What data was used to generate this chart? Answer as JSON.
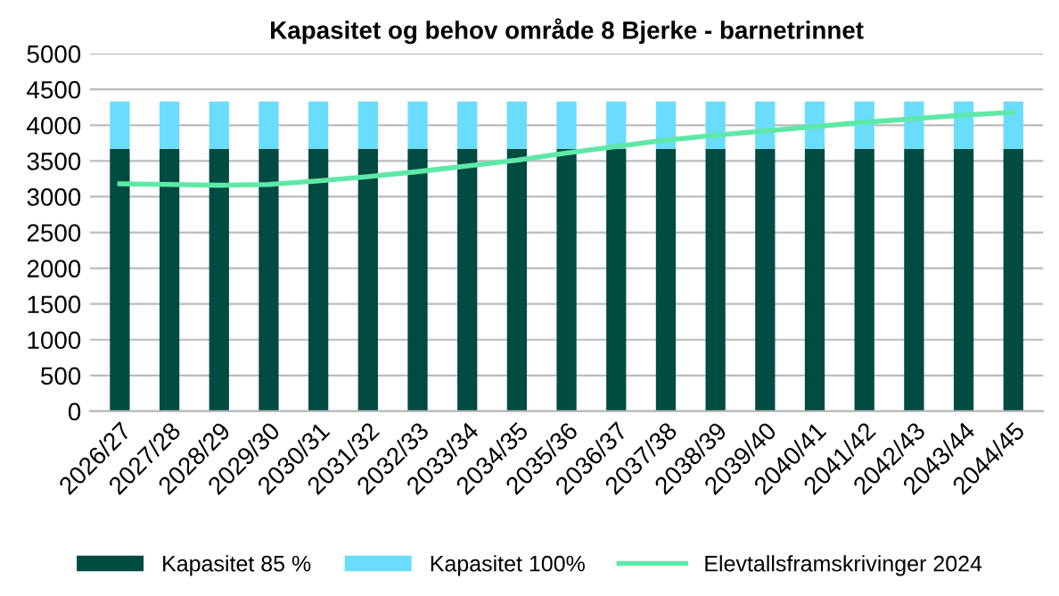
{
  "chart_data": {
    "type": "bar",
    "title": "Kapasitet og behov område 8 Bjerke - barnetrinnet",
    "categories": [
      "2026/27",
      "2027/28",
      "2028/29",
      "2029/30",
      "2030/31",
      "2031/32",
      "2032/33",
      "2033/34",
      "2034/35",
      "2035/36",
      "2036/37",
      "2037/38",
      "2038/39",
      "2039/40",
      "2040/41",
      "2041/42",
      "2042/43",
      "2043/44",
      "2044/45"
    ],
    "stacked": true,
    "series": [
      {
        "name": "Kapasitet 85 %",
        "color": "#004b42",
        "values": [
          3670,
          3670,
          3670,
          3670,
          3670,
          3670,
          3670,
          3670,
          3670,
          3670,
          3670,
          3670,
          3670,
          3670,
          3670,
          3670,
          3670,
          3670,
          3670
        ]
      },
      {
        "name": "Kapasitet 100%",
        "color": "#6adcfc",
        "values": [
          660,
          660,
          660,
          660,
          660,
          660,
          660,
          660,
          660,
          660,
          660,
          660,
          660,
          660,
          660,
          660,
          660,
          660,
          660
        ]
      },
      {
        "name": "Elevtallsframskrivinger 2024",
        "type": "line",
        "color": "#5ee8a8",
        "values": [
          3180,
          3170,
          3160,
          3170,
          3220,
          3280,
          3350,
          3430,
          3510,
          3610,
          3700,
          3790,
          3860,
          3920,
          3980,
          4040,
          4090,
          4140,
          4180
        ]
      }
    ],
    "ylim": [
      0,
      5000
    ],
    "yticks": [
      0,
      500,
      1000,
      1500,
      2000,
      2500,
      3000,
      3500,
      4000,
      4500,
      5000
    ],
    "grid": "y",
    "legend": "bottom",
    "marker": "none",
    "line_style": "solid"
  }
}
